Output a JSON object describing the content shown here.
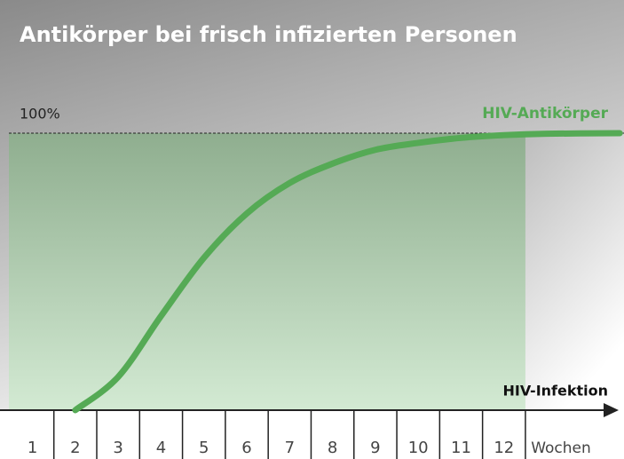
{
  "chart_data": {
    "type": "line",
    "title": "Antikörper bei frisch infizierten Personen",
    "x_label": "Wochen",
    "baseline_label": "HIV-Infektion",
    "x": [
      2,
      3,
      4,
      5,
      6,
      7,
      8,
      9,
      10,
      11,
      12,
      13,
      14.7
    ],
    "series": [
      {
        "name": "HIV-Antikörper",
        "color": "#55aa55",
        "values": [
          0,
          12,
          34,
          55,
          71,
          82,
          89,
          94,
          96.5,
          98.3,
          99.3,
          99.8,
          100
        ]
      }
    ],
    "xlim": [
      0.45,
      14.8
    ],
    "xticks": [
      1,
      2,
      3,
      4,
      5,
      6,
      7,
      8,
      9,
      10,
      11,
      12
    ],
    "ylim": [
      0,
      100
    ],
    "yticks": [
      {
        "value": 100,
        "label": "100%"
      }
    ],
    "shade_range": [
      0.45,
      12.5
    ],
    "grid": true
  }
}
